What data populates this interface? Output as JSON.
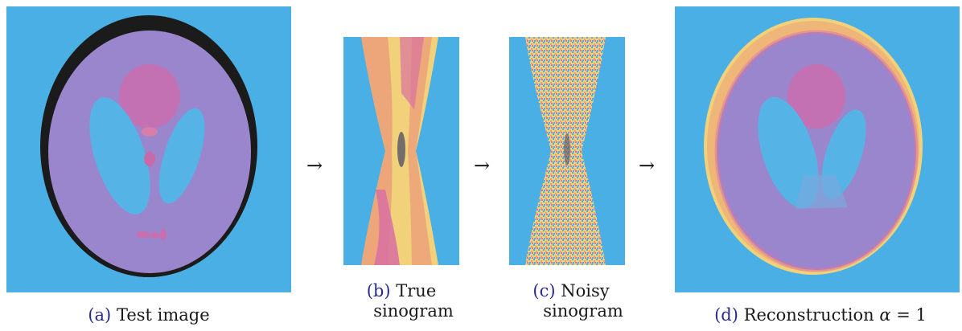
{
  "figure": {
    "panels": [
      {
        "label": "(a)",
        "caption": "Test image",
        "icon": "phantom-image"
      },
      {
        "label": "(b)",
        "caption_line1": "True",
        "caption_line2": "sinogram",
        "icon": "sinogram-image"
      },
      {
        "label": "(c)",
        "caption_line1": "Noisy",
        "caption_line2": "sinogram",
        "icon": "noisy-sinogram-image"
      },
      {
        "label": "(d)",
        "caption_text": "Reconstruction",
        "caption_symbol": "α",
        "caption_eq": " = 1",
        "icon": "reconstruction-image"
      }
    ],
    "arrows": [
      "→",
      "→",
      "→"
    ],
    "colors": {
      "background": "#4aafe4",
      "ellipse": "#9a86cc",
      "dark_ring": "#1b1b1b",
      "magenta": "#c86fb0",
      "inner_blue": "#55b3e6",
      "yellow": "#f1d27a",
      "orange": "#ec9f7a",
      "pink": "#d9739f",
      "caption_label": "#2b2b8c"
    }
  }
}
